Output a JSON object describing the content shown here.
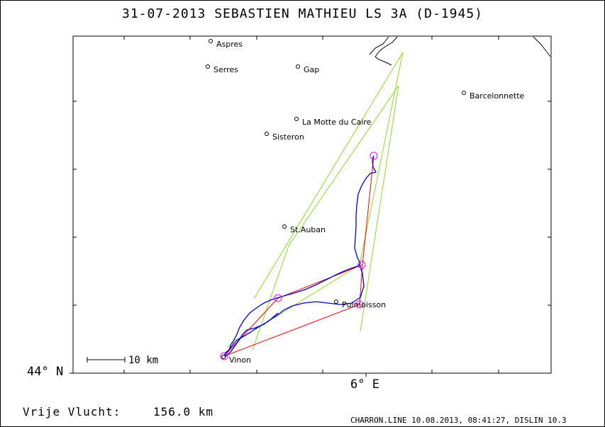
{
  "title": "31-07-2013    SEBASTIEN MATHIEU    LS 3A (D-1945)",
  "axes": {
    "lat_label": "44° N",
    "lon_label": "6° E"
  },
  "scale_bar": {
    "label": "10 km"
  },
  "distance": {
    "label": "Vrije Vlucht:",
    "value": "156.0 km"
  },
  "footer": "CHARRON.LINE 10.08.2013, 08:41:27, DISLIN 10.3",
  "towns": [
    "Aspres",
    "Serres",
    "Gap",
    "Barcelonnette",
    "La Motte du Caire",
    "Sisteron",
    "St.Auban",
    "Puimoisson",
    "Vinon"
  ],
  "colors": {
    "track": "#0000cc",
    "task_legs": "#ff0000",
    "sectors": "#88dd22",
    "turnpoints": "#ff00ff",
    "frame": "#000000"
  }
}
